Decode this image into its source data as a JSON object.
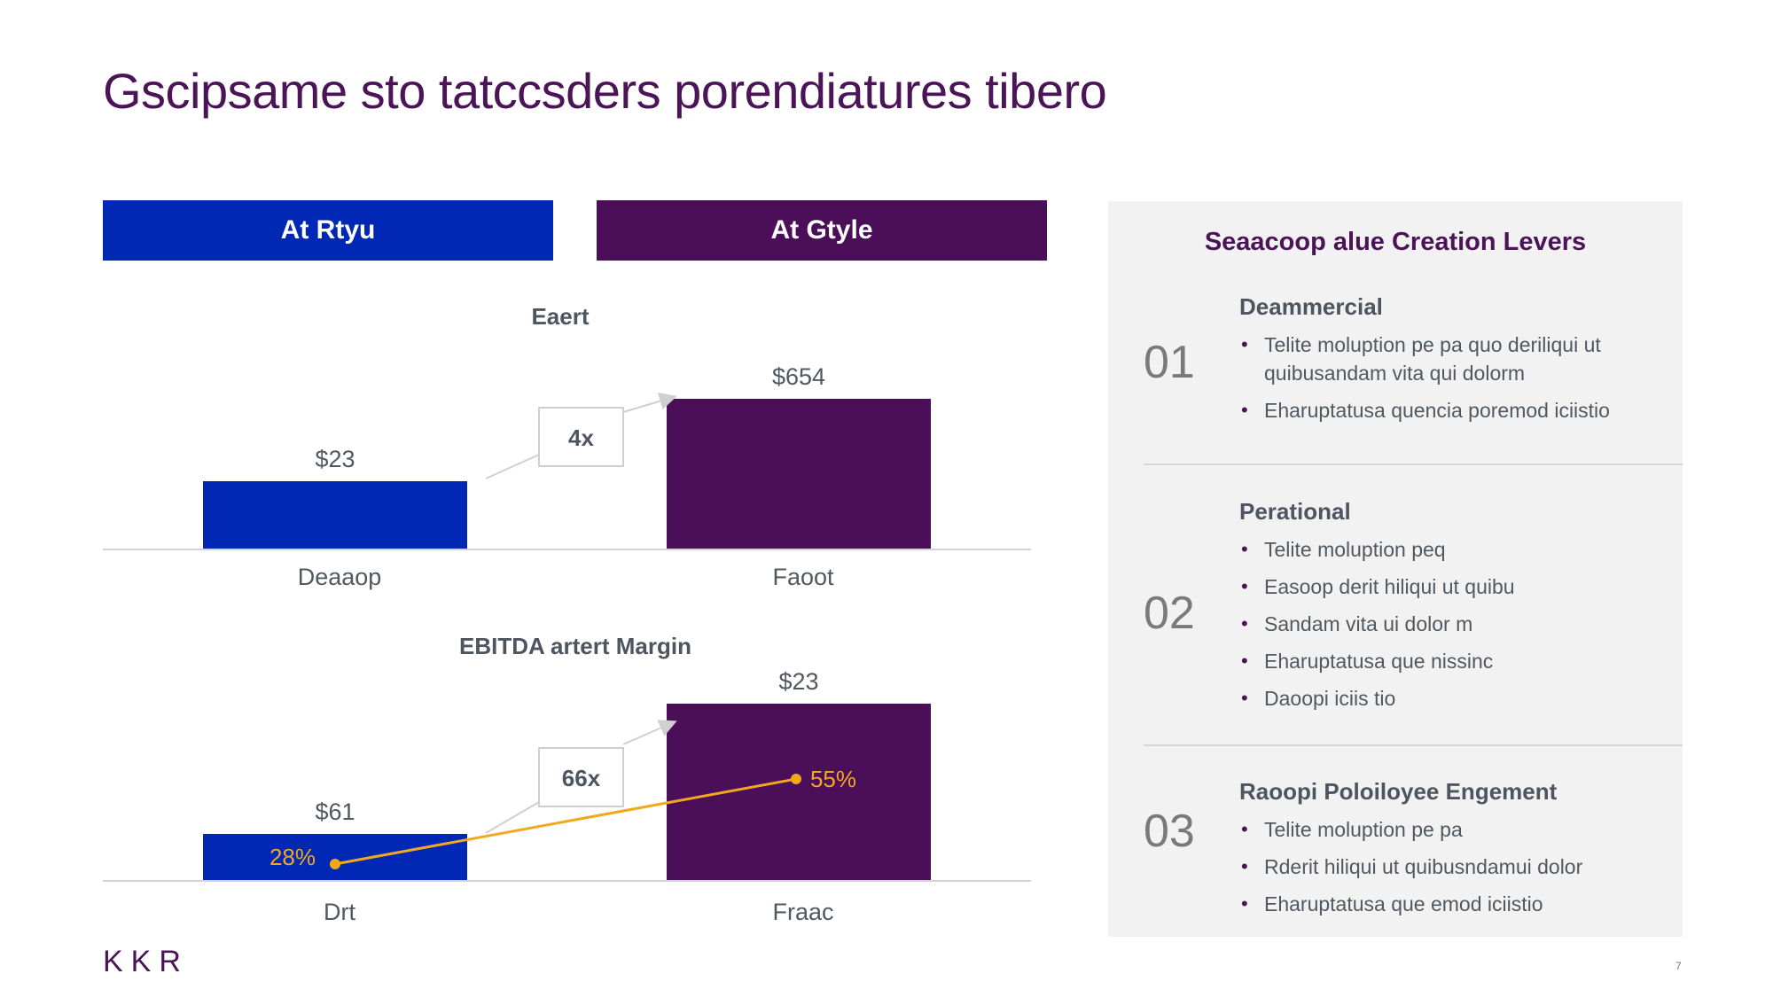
{
  "title": "Gscipsame sto tatccsders porendiatures tibero",
  "headers": {
    "left": "At Rtyu",
    "right": "At Gtyle"
  },
  "chart_data": [
    {
      "type": "bar",
      "title": "Eaert",
      "categories": [
        "Deaaop",
        "Faoot"
      ],
      "values": [
        23,
        654
      ],
      "value_labels": [
        "$23",
        "$654"
      ],
      "multiple_label": "4x",
      "colors": [
        "#0028b4",
        "#4a0f58"
      ]
    },
    {
      "type": "bar",
      "title": "EBITDA artert Margin",
      "categories": [
        "Drt",
        "Fraac"
      ],
      "values": [
        61,
        23
      ],
      "value_labels": [
        "$61",
        "$23"
      ],
      "multiple_label": "66x",
      "colors": [
        "#0028b4",
        "#4a0f58"
      ],
      "margin_series": {
        "values": [
          28,
          55
        ],
        "labels": [
          "28%",
          "55%"
        ],
        "color": "#f2a81d"
      }
    }
  ],
  "panel": {
    "title": "Seaacoop alue Creation Levers",
    "levers": [
      {
        "num": "01",
        "title": "Deammercial",
        "bullets": [
          "Telite moluption pe pa quo deriliqui ut quibusandam vita qui dolorm",
          "Eharuptatusa quencia poremod iciistio"
        ]
      },
      {
        "num": "02",
        "title": "Perational",
        "bullets": [
          "Telite moluption peq",
          "Easoop derit hiliqui ut quibu",
          "Sandam vita ui dolor m",
          "Eharuptatusa que nissinc",
          "Daoopi iciis tio"
        ]
      },
      {
        "num": "03",
        "title": "Raoopi Poloiloyee Engement",
        "bullets": [
          "Telite moluption pe pa",
          "Rderit hiliqui ut quibusndamui dolor",
          "Eharuptatusa que emod iciistio"
        ]
      }
    ]
  },
  "footer": {
    "logo": "KKR",
    "page": "7"
  }
}
